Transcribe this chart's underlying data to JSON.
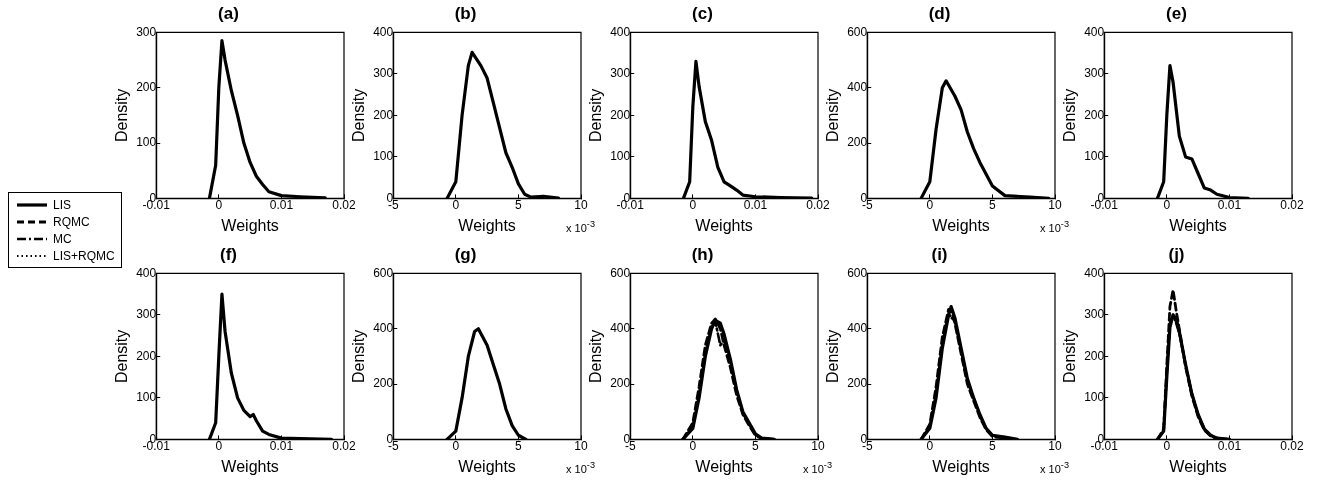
{
  "chart_data": [
    {
      "type": "line",
      "title": "(a)",
      "xlabel": "Weights",
      "ylabel": "Density",
      "xlim": [
        -0.01,
        0.02
      ],
      "xticks": [
        -0.01,
        0,
        0.01,
        0.02
      ],
      "ylim": [
        0,
        300
      ],
      "yticks": [
        0,
        100,
        200,
        300
      ],
      "legend": "left",
      "grid": false,
      "color": "#000000",
      "x": [
        -0.0015,
        -0.0005,
        0,
        0.0005,
        0.001,
        0.002,
        0.003,
        0.004,
        0.005,
        0.006,
        0.007,
        0.008,
        0.01,
        0.013,
        0.017
      ],
      "series": [
        {
          "name": "LIS",
          "line_style": "solid",
          "values": [
            0,
            60,
            200,
            285,
            250,
            195,
            150,
            100,
            65,
            40,
            25,
            12,
            5,
            3,
            1
          ]
        },
        {
          "name": "RQMC",
          "line_style": "dashed",
          "values": [
            null,
            null,
            null,
            null,
            null,
            null,
            null,
            null,
            null,
            null,
            null,
            null,
            null,
            null,
            null
          ]
        },
        {
          "name": "MC",
          "line_style": "dashdot",
          "values": [
            null,
            null,
            null,
            null,
            null,
            null,
            null,
            null,
            null,
            null,
            null,
            null,
            null,
            null,
            null
          ]
        },
        {
          "name": "LIS+RQMC",
          "line_style": "dotted",
          "values": [
            null,
            null,
            null,
            null,
            null,
            null,
            null,
            null,
            null,
            null,
            null,
            null,
            null,
            null,
            null
          ]
        }
      ]
    },
    {
      "type": "line",
      "title": "(b)",
      "xlabel": "Weights",
      "ylabel": "Density",
      "annotations": [
        "x 10$^{-3}$"
      ],
      "xlim": [
        -5,
        10
      ],
      "xticks": [
        -5,
        0,
        5,
        10
      ],
      "ylim": [
        0,
        400
      ],
      "yticks": [
        0,
        100,
        200,
        300,
        400
      ],
      "grid": false,
      "color": "#000000",
      "x": [
        -0.7,
        0,
        0.5,
        1,
        1.3,
        2,
        2.5,
        3,
        3.5,
        4,
        4.5,
        5,
        5.5,
        6,
        7,
        8.2
      ],
      "series": [
        {
          "line_style": "solid",
          "values": [
            0,
            40,
            200,
            320,
            352,
            320,
            290,
            230,
            170,
            110,
            75,
            35,
            10,
            3,
            5,
            1
          ]
        },
        {
          "line_style": "dashed",
          "values": [
            null,
            null,
            null,
            null,
            null,
            null,
            null,
            null,
            null,
            null,
            null,
            null,
            null,
            null,
            null,
            null
          ]
        },
        {
          "line_style": "dashdot",
          "values": [
            null,
            null,
            null,
            null,
            null,
            null,
            null,
            null,
            null,
            null,
            null,
            null,
            null,
            null,
            null,
            null
          ]
        },
        {
          "line_style": "dotted",
          "values": [
            null,
            null,
            null,
            null,
            null,
            null,
            null,
            null,
            null,
            null,
            null,
            null,
            null,
            null,
            null,
            null
          ]
        }
      ]
    },
    {
      "type": "line",
      "title": "(c)",
      "xlabel": "Weights",
      "ylabel": "Density",
      "xlim": [
        -0.01,
        0.02
      ],
      "xticks": [
        -0.01,
        0,
        0.01,
        0.02
      ],
      "ylim": [
        0,
        400
      ],
      "yticks": [
        0,
        100,
        200,
        300,
        400
      ],
      "grid": false,
      "color": "#000000",
      "x": [
        -0.0015,
        -0.0005,
        0,
        0.0005,
        0.001,
        0.002,
        0.003,
        0.004,
        0.005,
        0.006,
        0.007,
        0.008,
        0.01,
        0.014,
        0.019
      ],
      "series": [
        {
          "line_style": "solid",
          "values": [
            0,
            40,
            220,
            330,
            270,
            185,
            140,
            75,
            40,
            30,
            20,
            8,
            4,
            2,
            1
          ]
        },
        {
          "line_style": "dashed",
          "values": [
            null,
            null,
            null,
            null,
            null,
            null,
            null,
            null,
            null,
            null,
            null,
            null,
            null,
            null,
            null
          ]
        },
        {
          "line_style": "dashdot",
          "values": [
            null,
            null,
            null,
            null,
            null,
            null,
            null,
            null,
            null,
            null,
            null,
            null,
            null,
            null,
            null
          ]
        },
        {
          "line_style": "dotted",
          "values": [
            null,
            null,
            null,
            null,
            null,
            null,
            null,
            null,
            null,
            null,
            null,
            null,
            null,
            null,
            null
          ]
        }
      ]
    },
    {
      "type": "line",
      "title": "(d)",
      "xlabel": "Weights",
      "ylabel": "Density",
      "annotations": [
        "x 10$^{-3}$"
      ],
      "xlim": [
        -5,
        10
      ],
      "xticks": [
        -5,
        0,
        5,
        10
      ],
      "ylim": [
        0,
        600
      ],
      "yticks": [
        0,
        200,
        400,
        600
      ],
      "grid": false,
      "color": "#000000",
      "x": [
        -0.7,
        0,
        0.5,
        1,
        1.3,
        2,
        2.5,
        3,
        3.5,
        4,
        5,
        6,
        8,
        9.5
      ],
      "series": [
        {
          "line_style": "solid",
          "values": [
            0,
            60,
            250,
            400,
            425,
            370,
            320,
            240,
            180,
            130,
            45,
            10,
            5,
            0
          ]
        },
        {
          "line_style": "dashed",
          "values": [
            null,
            null,
            null,
            null,
            null,
            null,
            null,
            null,
            null,
            null,
            null,
            null,
            null,
            null
          ]
        },
        {
          "line_style": "dashdot",
          "values": [
            null,
            null,
            null,
            null,
            null,
            null,
            null,
            null,
            null,
            null,
            null,
            null,
            null,
            null
          ]
        },
        {
          "line_style": "dotted",
          "values": [
            null,
            null,
            null,
            null,
            null,
            null,
            null,
            null,
            null,
            null,
            null,
            null,
            null,
            null
          ]
        }
      ]
    },
    {
      "type": "line",
      "title": "(e)",
      "xlabel": "Weights",
      "ylabel": "Density",
      "xlim": [
        -0.01,
        0.02
      ],
      "xticks": [
        -0.01,
        0,
        0.01,
        0.02
      ],
      "ylim": [
        0,
        400
      ],
      "yticks": [
        0,
        100,
        200,
        300,
        400
      ],
      "grid": false,
      "color": "#000000",
      "x": [
        -0.0015,
        -0.0005,
        0,
        0.0005,
        0.001,
        0.002,
        0.003,
        0.004,
        0.005,
        0.006,
        0.007,
        0.008,
        0.01,
        0.013
      ],
      "series": [
        {
          "line_style": "solid",
          "values": [
            0,
            40,
            200,
            320,
            280,
            150,
            100,
            95,
            60,
            25,
            20,
            10,
            2,
            0
          ]
        },
        {
          "line_style": "dashed",
          "values": [
            null,
            null,
            null,
            null,
            null,
            null,
            null,
            null,
            null,
            null,
            null,
            null,
            null,
            null
          ]
        },
        {
          "line_style": "dashdot",
          "values": [
            null,
            null,
            null,
            null,
            null,
            null,
            null,
            null,
            null,
            null,
            null,
            null,
            null,
            null
          ]
        },
        {
          "line_style": "dotted",
          "values": [
            null,
            null,
            null,
            null,
            null,
            null,
            null,
            null,
            null,
            null,
            null,
            null,
            null,
            null
          ]
        }
      ]
    },
    {
      "type": "line",
      "title": "(f)",
      "xlabel": "Weights",
      "ylabel": "Density",
      "xlim": [
        -0.01,
        0.02
      ],
      "xticks": [
        -0.01,
        0,
        0.01,
        0.02
      ],
      "ylim": [
        0,
        400
      ],
      "yticks": [
        0,
        100,
        200,
        300,
        400
      ],
      "grid": false,
      "color": "#000000",
      "x": [
        -0.0015,
        -0.0005,
        0,
        0.0005,
        0.001,
        0.002,
        0.003,
        0.004,
        0.005,
        0.0055,
        0.006,
        0.007,
        0.008,
        0.01,
        0.013,
        0.018
      ],
      "series": [
        {
          "line_style": "solid",
          "values": [
            0,
            40,
            200,
            350,
            260,
            160,
            100,
            70,
            55,
            60,
            45,
            20,
            12,
            3,
            2,
            0
          ]
        },
        {
          "line_style": "dashed",
          "values": [
            null,
            null,
            null,
            null,
            null,
            null,
            null,
            null,
            null,
            null,
            null,
            null,
            null,
            null,
            null,
            null
          ]
        },
        {
          "line_style": "dashdot",
          "values": [
            null,
            null,
            null,
            null,
            null,
            null,
            null,
            null,
            null,
            null,
            null,
            null,
            null,
            null,
            null,
            null
          ]
        },
        {
          "line_style": "dotted",
          "values": [
            null,
            null,
            null,
            null,
            null,
            null,
            null,
            null,
            null,
            null,
            null,
            null,
            null,
            null,
            null,
            null
          ]
        }
      ]
    },
    {
      "type": "line",
      "title": "(g)",
      "xlabel": "Weights",
      "ylabel": "Density",
      "annotations": [
        "x 10$^{-3}$"
      ],
      "xlim": [
        -5,
        10
      ],
      "xticks": [
        -5,
        0,
        5,
        10
      ],
      "ylim": [
        0,
        600
      ],
      "yticks": [
        0,
        200,
        400,
        600
      ],
      "grid": false,
      "color": "#000000",
      "x": [
        -0.7,
        0,
        0.5,
        1,
        1.5,
        1.8,
        2.5,
        3,
        3.5,
        4,
        4.5,
        5,
        5.6
      ],
      "series": [
        {
          "line_style": "solid",
          "values": [
            0,
            30,
            150,
            300,
            390,
            400,
            340,
            270,
            200,
            110,
            50,
            15,
            0
          ]
        },
        {
          "line_style": "dashed",
          "values": [
            null,
            null,
            null,
            null,
            null,
            null,
            null,
            null,
            null,
            null,
            null,
            null,
            null
          ]
        },
        {
          "line_style": "dashdot",
          "values": [
            null,
            null,
            null,
            null,
            null,
            null,
            null,
            null,
            null,
            null,
            null,
            null,
            null
          ]
        },
        {
          "line_style": "dotted",
          "values": [
            null,
            null,
            null,
            null,
            null,
            null,
            null,
            null,
            null,
            null,
            null,
            null,
            null
          ]
        }
      ]
    },
    {
      "type": "line",
      "title": "(h)",
      "xlabel": "Weights",
      "ylabel": "Density",
      "annotations": [
        "x 10$^{-3}$"
      ],
      "xlim": [
        -5,
        10
      ],
      "xticks": [
        -5,
        0,
        5,
        10
      ],
      "ylim": [
        0,
        600
      ],
      "yticks": [
        0,
        200,
        400,
        600
      ],
      "grid": false,
      "color": "#000000",
      "x": [
        -0.8,
        0,
        0.5,
        1,
        1.5,
        1.8,
        2.2,
        2.5,
        3,
        3.5,
        4,
        4.5,
        5,
        5.5,
        6.5
      ],
      "series": [
        {
          "line_style": "solid",
          "values": [
            0,
            40,
            150,
            300,
            400,
            430,
            420,
            380,
            290,
            180,
            100,
            60,
            20,
            5,
            0
          ]
        },
        {
          "line_style": "dashed",
          "values": [
            0,
            60,
            190,
            340,
            420,
            435,
            400,
            340,
            260,
            160,
            90,
            50,
            15,
            3,
            0
          ]
        },
        {
          "line_style": "dashdot",
          "values": [
            0,
            45,
            160,
            310,
            405,
            425,
            340,
            360,
            280,
            175,
            95,
            55,
            18,
            4,
            0
          ]
        },
        {
          "line_style": "dotted",
          "values": [
            null,
            null,
            null,
            null,
            null,
            null,
            null,
            null,
            null,
            null,
            null,
            null,
            null,
            null,
            null
          ]
        }
      ]
    },
    {
      "type": "line",
      "title": "(i)",
      "xlabel": "Weights",
      "ylabel": "Density",
      "annotations": [
        "x 10$^{-3}$"
      ],
      "xlim": [
        -5,
        10
      ],
      "xticks": [
        -5,
        0,
        5,
        10
      ],
      "ylim": [
        0,
        600
      ],
      "yticks": [
        0,
        200,
        400,
        600
      ],
      "grid": false,
      "color": "#000000",
      "x": [
        -0.7,
        0,
        0.5,
        1,
        1.5,
        1.7,
        2,
        2.5,
        3,
        3.5,
        4,
        4.5,
        5,
        6,
        7
      ],
      "series": [
        {
          "line_style": "solid",
          "values": [
            0,
            40,
            150,
            330,
            450,
            480,
            440,
            330,
            220,
            150,
            90,
            40,
            15,
            8,
            0
          ]
        },
        {
          "line_style": "dashed",
          "values": [
            0,
            55,
            190,
            370,
            470,
            470,
            420,
            310,
            200,
            140,
            80,
            35,
            10,
            5,
            0
          ]
        },
        {
          "line_style": "dashdot",
          "values": [
            0,
            45,
            165,
            345,
            455,
            440,
            430,
            320,
            215,
            150,
            85,
            40,
            15,
            6,
            0
          ]
        },
        {
          "line_style": "dotted",
          "values": [
            null,
            null,
            null,
            null,
            null,
            null,
            null,
            null,
            null,
            null,
            null,
            null,
            null,
            null,
            null
          ]
        }
      ]
    },
    {
      "type": "line",
      "title": "(j)",
      "xlabel": "Weights",
      "ylabel": "Density",
      "xlim": [
        -0.01,
        0.02
      ],
      "xticks": [
        -0.01,
        0,
        0.01,
        0.02
      ],
      "ylim": [
        0,
        400
      ],
      "yticks": [
        0,
        100,
        200,
        300,
        400
      ],
      "grid": false,
      "color": "#000000",
      "x": [
        -0.0015,
        -0.0005,
        0,
        0.0005,
        0.001,
        0.0015,
        0.002,
        0.003,
        0.004,
        0.005,
        0.006,
        0.007,
        0.008,
        0.01
      ],
      "series": [
        {
          "line_style": "solid",
          "values": [
            0,
            20,
            150,
            270,
            300,
            290,
            260,
            180,
            110,
            60,
            25,
            10,
            3,
            0
          ]
        },
        {
          "line_style": "dashed",
          "values": [
            0,
            25,
            180,
            320,
            360,
            310,
            265,
            175,
            105,
            55,
            22,
            8,
            2,
            0
          ]
        },
        {
          "line_style": "dashdot",
          "values": [
            0,
            20,
            160,
            280,
            300,
            280,
            255,
            180,
            110,
            60,
            25,
            10,
            3,
            0
          ]
        },
        {
          "line_style": "dotted",
          "values": [
            null,
            null,
            null,
            null,
            null,
            null,
            null,
            null,
            null,
            null,
            null,
            null,
            null,
            null
          ]
        }
      ]
    }
  ]
}
